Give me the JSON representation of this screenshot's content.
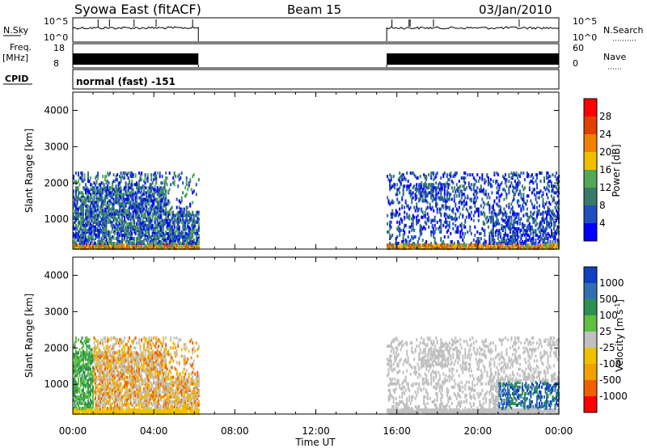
{
  "header": {
    "station": "Syowa East (fitACF)",
    "beam": "Beam 15",
    "date": "03/Jan/2010"
  },
  "colors": {
    "power_scale": [
      "#0000ff",
      "#2050c0",
      "#3a7a6a",
      "#53a858",
      "#f0c000",
      "#f08000",
      "#e04000",
      "#ff0000"
    ],
    "velocity_scale": [
      "#ff0000",
      "#f06000",
      "#f0a000",
      "#f0c000",
      "#c0c0c0",
      "#60c040",
      "#2e9050",
      "#3070b0",
      "#1040c0"
    ],
    "ground_scatter": "#a8a8a8",
    "text": "#000000"
  },
  "chart_data": [
    {
      "type": "line",
      "name": "top-panel",
      "left_label": "N.Sky",
      "right_label": "N.Search",
      "y_left_ticks": [
        "10^5",
        "10^0"
      ],
      "y_right_ticks": [
        "10^5",
        "10^0"
      ],
      "x_range_hours": [
        0,
        24
      ],
      "data_segments_hours": [
        [
          0,
          6.2
        ],
        [
          15.5,
          24
        ]
      ]
    },
    {
      "type": "line",
      "name": "freq-panel",
      "left_label_line1": "Freq.",
      "left_label_line2": "[MHz]",
      "right_label": "Nave",
      "y_left_ticks": [
        "18",
        "8"
      ],
      "y_right_ticks": [
        "60",
        "0"
      ],
      "x_range_hours": [
        0,
        24
      ],
      "data_segments_hours": [
        [
          0,
          6.2
        ],
        [
          15.5,
          24
        ]
      ]
    },
    {
      "type": "table",
      "name": "cpid-panel",
      "label": "CPID",
      "value": "normal (fast) -151"
    },
    {
      "type": "heatmap",
      "name": "power",
      "ylabel": "Slant Range [km]",
      "y_ticks": [
        "1000",
        "2000",
        "3000",
        "4000"
      ],
      "ylim": [
        180,
        4500
      ],
      "xlim_hours": [
        0,
        24
      ],
      "colorbar_label": "Power [dB]",
      "colorbar_ticks": [
        "4",
        "8",
        "12",
        "16",
        "20",
        "24",
        "28"
      ],
      "data_windows_hours": [
        [
          0,
          6.2
        ],
        [
          15.5,
          24
        ]
      ]
    },
    {
      "type": "heatmap",
      "name": "velocity",
      "ylabel": "Slant Range [km]",
      "y_ticks": [
        "1000",
        "2000",
        "3000",
        "4000"
      ],
      "ylim": [
        180,
        4500
      ],
      "xlim_hours": [
        0,
        24
      ],
      "colorbar_label_main": "Velocity",
      "colorbar_label_unit": "[m s",
      "colorbar_label_exp": "-1",
      "colorbar_label_close": "]",
      "colorbar_ticks": [
        "1000",
        "500",
        "100",
        "25",
        "-25",
        "-100",
        "-500",
        "-1000"
      ],
      "data_windows_hours": [
        [
          0,
          6.2
        ],
        [
          15.5,
          24
        ]
      ]
    }
  ],
  "x_axis": {
    "ticks": [
      "00:00",
      "04:00",
      "08:00",
      "12:00",
      "16:00",
      "20:00",
      "00:00"
    ],
    "label": "Time UT"
  }
}
